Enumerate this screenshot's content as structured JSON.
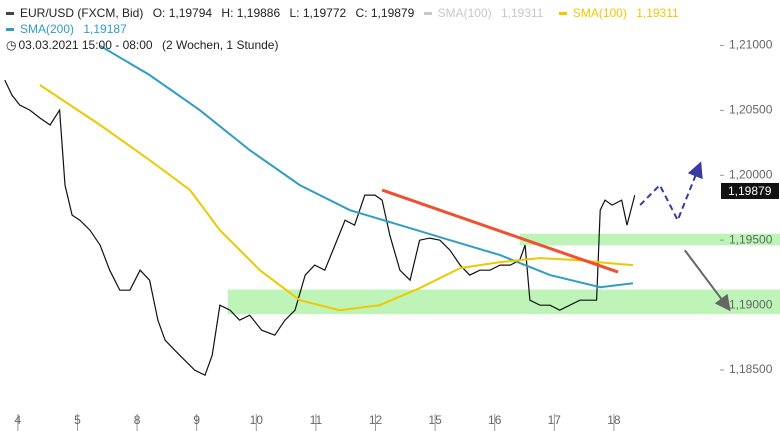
{
  "chart_data": {
    "type": "line",
    "header": {
      "symbol": "EUR/USD (FXCM, Bid)",
      "ohlc": [
        "O: 1,19794",
        "H: 1,19886",
        "L: 1,19772",
        "C: 1,19879"
      ],
      "extra": {
        "name": "SMA(100)",
        "value": "1,19311",
        "color": "#c8c8c8"
      },
      "range": "03.03.2021 15:00 - 08:00",
      "period": "(2 Wochen, 1 Stunde)"
    },
    "xlim": [
      -0.3,
      11.78
    ],
    "ylim": [
      1.18192,
      1.2135
    ],
    "xticks": [
      {
        "value": 0,
        "label": "4"
      },
      {
        "value": 1,
        "label": "5"
      },
      {
        "value": 2,
        "label": "8"
      },
      {
        "value": 3,
        "label": "9"
      },
      {
        "value": 4,
        "label": "10"
      },
      {
        "value": 5,
        "label": "11"
      },
      {
        "value": 6,
        "label": "12"
      },
      {
        "value": 7,
        "label": "15"
      },
      {
        "value": 8,
        "label": "16"
      },
      {
        "value": 9,
        "label": "17"
      },
      {
        "value": 10,
        "label": "18"
      }
    ],
    "yticks": [
      {
        "value": 1.21,
        "label": "1,21000"
      },
      {
        "value": 1.205,
        "label": "1,20500"
      },
      {
        "value": 1.2,
        "label": "1,20000"
      },
      {
        "value": 1.195,
        "label": "1,19500"
      },
      {
        "value": 1.19,
        "label": "1,19000"
      },
      {
        "value": 1.185,
        "label": "1,18500"
      }
    ],
    "zones": [
      {
        "x0": 8.42,
        "ylim": [
          1.1946,
          1.1955
        ],
        "color": "#a8f0a0"
      },
      {
        "x0": 3.52,
        "ylim": [
          1.1893,
          1.1912
        ],
        "color": "#a8f0a0"
      }
    ],
    "series": [
      {
        "color": "#111111",
        "x": [
          -0.22,
          -0.1,
          0.03,
          0.2,
          0.37,
          0.54,
          0.7,
          0.79,
          0.91,
          1.04,
          1.21,
          1.38,
          1.54,
          1.71,
          1.88,
          2.05,
          2.21,
          2.35,
          2.47,
          2.63,
          2.8,
          2.97,
          3.14,
          3.26,
          3.39,
          3.56,
          3.72,
          3.89,
          4.09,
          4.31,
          4.48,
          4.65,
          4.82,
          4.98,
          5.15,
          5.32,
          5.49,
          5.65,
          5.82,
          5.99,
          6.11,
          6.24,
          6.41,
          6.58,
          6.74,
          6.91,
          7.08,
          7.25,
          7.42,
          7.58,
          7.75,
          7.92,
          8.09,
          8.26,
          8.42,
          8.51,
          8.59,
          8.76,
          8.93,
          9.09,
          9.26,
          9.43,
          9.6,
          9.71,
          9.77,
          9.85,
          9.97,
          10.13,
          10.22,
          10.35
        ],
        "values": [
          1.20733,
          1.20618,
          1.20541,
          1.20502,
          1.20441,
          1.20387,
          1.20502,
          1.19924,
          1.19693,
          1.19654,
          1.19577,
          1.19462,
          1.19269,
          1.19115,
          1.19115,
          1.19269,
          1.19192,
          1.18884,
          1.1873,
          1.18653,
          1.18575,
          1.18498,
          1.1846,
          1.18614,
          1.18999,
          1.18961,
          1.18884,
          1.18922,
          1.18807,
          1.18768,
          1.18884,
          1.18961,
          1.19231,
          1.19308,
          1.19269,
          1.19462,
          1.19654,
          1.19616,
          1.19847,
          1.19847,
          1.19809,
          1.19539,
          1.19269,
          1.19192,
          1.195,
          1.19516,
          1.195,
          1.19423,
          1.19308,
          1.19231,
          1.19269,
          1.19269,
          1.19308,
          1.19308,
          1.19346,
          1.19462,
          1.19038,
          1.18999,
          1.18999,
          1.18961,
          1.18999,
          1.19038,
          1.19038,
          1.19038,
          1.19731,
          1.19809,
          1.1977,
          1.19809,
          1.19616,
          1.19847
        ]
      },
      {
        "name": "SMA(200)",
        "value_label": "1,19187",
        "color": "#2e9ec4",
        "x": [
          1.38,
          2.21,
          3.05,
          3.89,
          4.73,
          5.57,
          6.41,
          7.25,
          8.09,
          8.93,
          9.77,
          10.32
        ],
        "values": [
          1.20997,
          1.20772,
          1.20502,
          1.20194,
          1.19924,
          1.19731,
          1.19616,
          1.195,
          1.19385,
          1.19231,
          1.19138,
          1.19169
        ]
      },
      {
        "name": "SMA(100)",
        "value_label": "1,19311",
        "color": "#f0c800",
        "x": [
          0.37,
          1.38,
          2.21,
          2.89,
          3.39,
          4.06,
          4.73,
          5.4,
          6.07,
          6.74,
          7.42,
          8.09,
          8.76,
          9.43,
          9.93,
          10.32
        ],
        "values": [
          1.20695,
          1.20387,
          1.20117,
          1.19886,
          1.19577,
          1.19269,
          1.19038,
          1.18961,
          1.18999,
          1.1913,
          1.19285,
          1.19331,
          1.19362,
          1.19346,
          1.19323,
          1.19308
        ]
      }
    ],
    "trendline": {
      "x": [
        6.11,
        10.07
      ],
      "values": [
        1.19886,
        1.19254
      ],
      "color": "#f05030"
    },
    "forecast": {
      "x": [
        10.44,
        10.77,
        11.07,
        11.44
      ],
      "values": [
        1.1977,
        1.19924,
        1.19654,
        1.20078
      ],
      "color": "#3a3aa0"
    },
    "arrow": {
      "x": [
        11.19,
        11.92
      ],
      "values": [
        1.19423,
        1.18976
      ],
      "color": "#666666"
    },
    "last_price": {
      "value": 1.19879,
      "label": "1,19879"
    }
  }
}
